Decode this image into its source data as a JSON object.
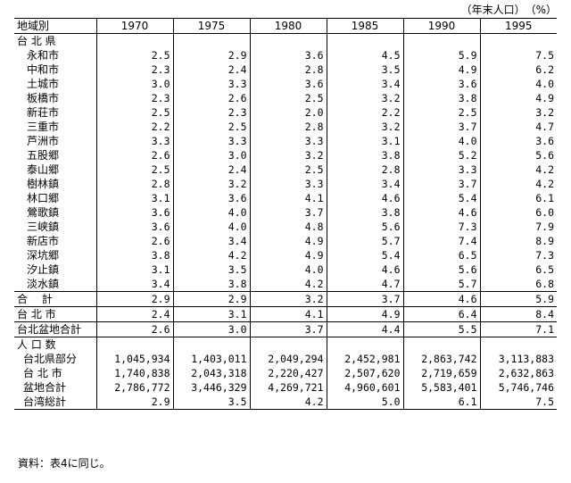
{
  "unit_note": "（年末人口）　（%）",
  "header": {
    "region_label": "地域別",
    "years": [
      "1970",
      "1975",
      "1980",
      "1985",
      "1990",
      "1995"
    ]
  },
  "sections": {
    "taipei_county": "台 北 県",
    "population": "人 口 数"
  },
  "county_rows": [
    {
      "name": "永和市",
      "values": [
        "2.5",
        "2.9",
        "3.6",
        "4.5",
        "5.9",
        "7.5"
      ]
    },
    {
      "name": "中和市",
      "values": [
        "2.3",
        "2.4",
        "2.8",
        "3.5",
        "4.9",
        "6.2"
      ]
    },
    {
      "name": "土城市",
      "values": [
        "3.0",
        "3.3",
        "3.6",
        "3.4",
        "3.6",
        "4.0"
      ]
    },
    {
      "name": "板橋市",
      "values": [
        "2.3",
        "2.6",
        "2.5",
        "3.2",
        "3.8",
        "4.9"
      ]
    },
    {
      "name": "新荘市",
      "values": [
        "2.5",
        "2.3",
        "2.0",
        "2.2",
        "2.5",
        "3.2"
      ]
    },
    {
      "name": "三重市",
      "values": [
        "2.2",
        "2.5",
        "2.8",
        "3.2",
        "3.7",
        "4.7"
      ]
    },
    {
      "name": "芦洲市",
      "values": [
        "3.3",
        "3.3",
        "3.3",
        "3.1",
        "4.0",
        "3.6"
      ]
    },
    {
      "name": "五股郷",
      "values": [
        "2.6",
        "3.0",
        "3.2",
        "3.8",
        "5.2",
        "5.6"
      ]
    },
    {
      "name": "泰山郷",
      "values": [
        "2.5",
        "2.4",
        "2.5",
        "2.8",
        "3.3",
        "4.2"
      ]
    },
    {
      "name": "樹林鎮",
      "values": [
        "2.8",
        "3.2",
        "3.3",
        "3.4",
        "3.7",
        "4.2"
      ]
    },
    {
      "name": "林口郷",
      "values": [
        "3.1",
        "3.6",
        "4.1",
        "4.6",
        "5.4",
        "6.1"
      ]
    },
    {
      "name": "鶯歌鎮",
      "values": [
        "3.6",
        "4.0",
        "3.7",
        "3.8",
        "4.6",
        "6.0"
      ]
    },
    {
      "name": "三峡鎮",
      "values": [
        "3.6",
        "4.0",
        "4.8",
        "5.6",
        "7.3",
        "7.9"
      ]
    },
    {
      "name": "新店市",
      "values": [
        "2.6",
        "3.4",
        "4.9",
        "5.7",
        "7.4",
        "8.9"
      ]
    },
    {
      "name": "深坑郷",
      "values": [
        "3.8",
        "4.2",
        "4.9",
        "5.4",
        "6.5",
        "7.3"
      ]
    },
    {
      "name": "汐止鎮",
      "values": [
        "3.1",
        "3.5",
        "4.0",
        "4.6",
        "5.6",
        "6.5"
      ]
    },
    {
      "name": "淡水鎮",
      "values": [
        "3.4",
        "3.8",
        "4.2",
        "4.7",
        "5.7",
        "6.8"
      ]
    }
  ],
  "summary_rows": [
    {
      "name": "合　 計",
      "values": [
        "2.9",
        "2.9",
        "3.2",
        "3.7",
        "4.6",
        "5.9"
      ]
    },
    {
      "name": "台 北 市",
      "values": [
        "2.4",
        "3.1",
        "4.1",
        "4.9",
        "6.4",
        "8.4"
      ]
    },
    {
      "name": "台北盆地合計",
      "values": [
        "2.6",
        "3.0",
        "3.7",
        "4.4",
        "5.5",
        "7.1"
      ]
    }
  ],
  "population_rows": [
    {
      "name": "台北県部分",
      "values": [
        "1,045,934",
        "1,403,011",
        "2,049,294",
        "2,452,981",
        "2,863,742",
        "3,113,883"
      ]
    },
    {
      "name": "台 北 市",
      "values": [
        "1,740,838",
        "2,043,318",
        "2,220,427",
        "2,507,620",
        "2,719,659",
        "2,632,863"
      ]
    },
    {
      "name": "盆地合計",
      "values": [
        "2,786,772",
        "3,446,329",
        "4,269,721",
        "4,960,601",
        "5,583,401",
        "5,746,746"
      ]
    },
    {
      "name": "台湾総計",
      "values": [
        "2.9",
        "3.5",
        "4.2",
        "5.0",
        "6.1",
        "7.5"
      ]
    }
  ],
  "source": "資料：表4に同じ。"
}
